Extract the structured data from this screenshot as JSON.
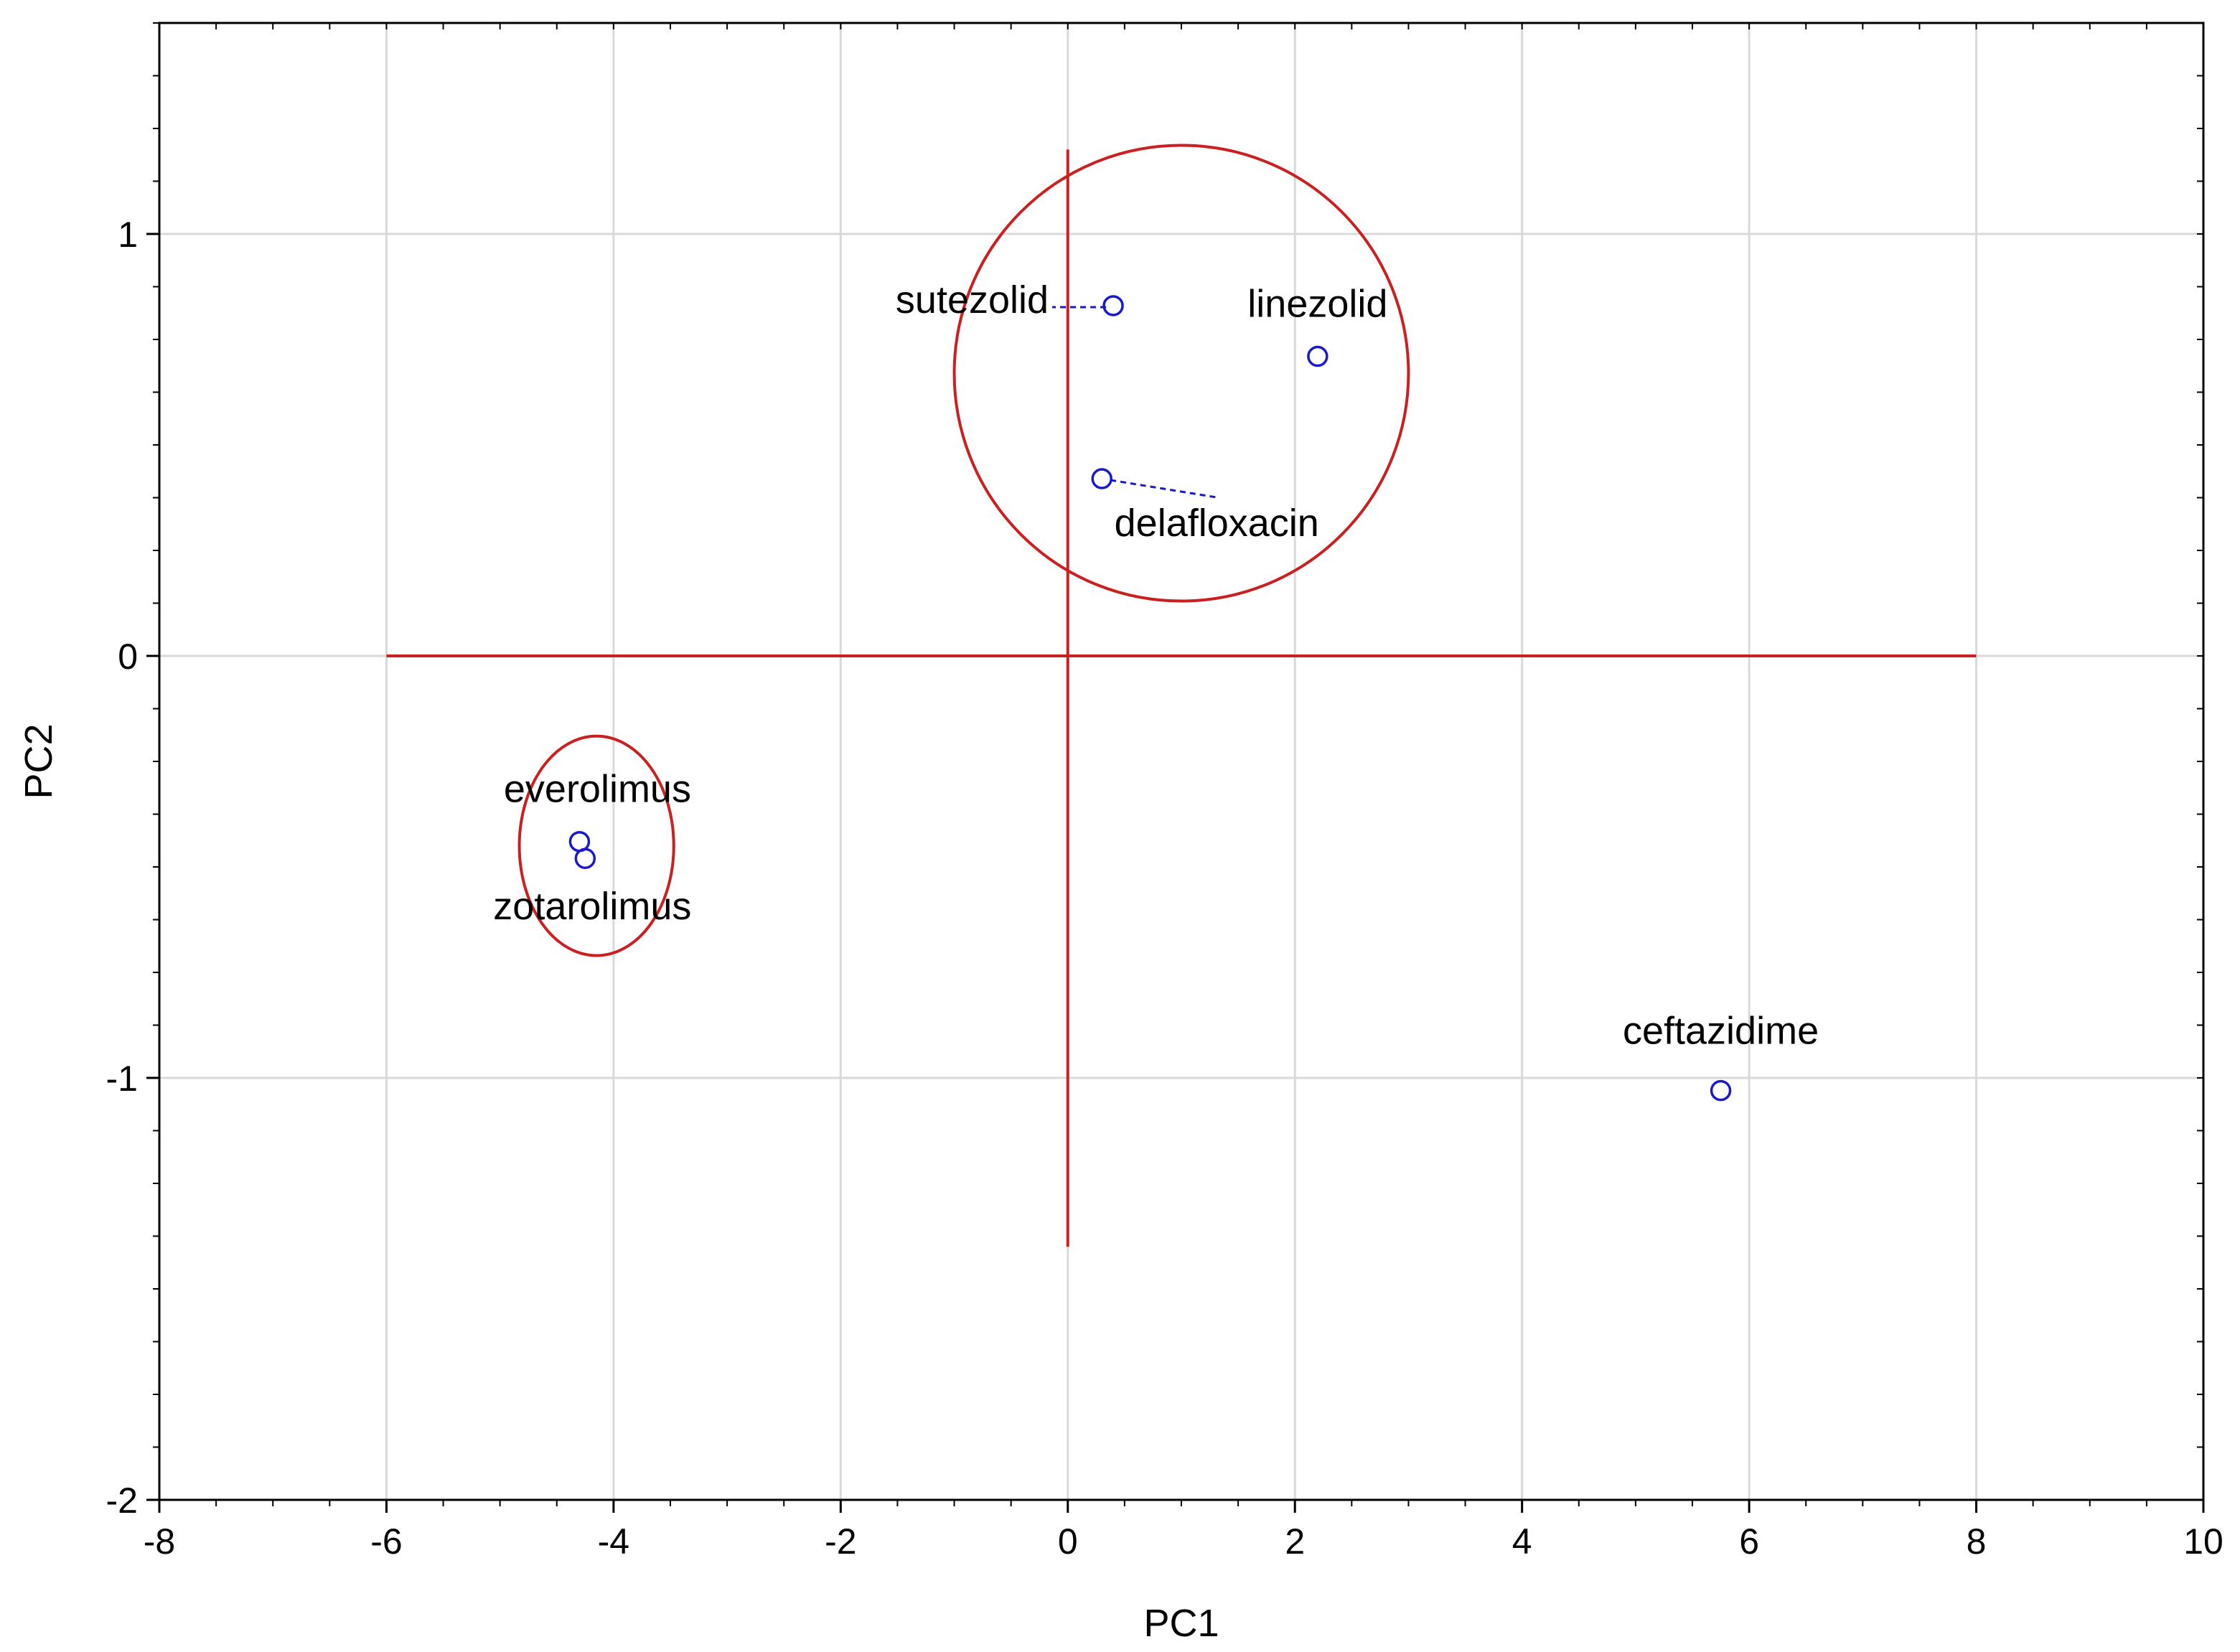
{
  "chart_data": {
    "type": "scatter",
    "title": "",
    "xlabel": "PC1",
    "ylabel": "PC2",
    "xlim": [
      -8,
      10
    ],
    "ylim": [
      -2,
      1.5
    ],
    "xticks": [
      "-8",
      "-6",
      "-4",
      "-2",
      "0",
      "2",
      "4",
      "6",
      "8",
      "10"
    ],
    "yticks": [
      "-2",
      "-1",
      "0",
      "1"
    ],
    "grid": true,
    "points": [
      {
        "label": "sutezolid",
        "x": 0.4,
        "y": 0.83
      },
      {
        "label": "linezolid",
        "x": 2.2,
        "y": 0.71
      },
      {
        "label": "delafloxacin",
        "x": 0.3,
        "y": 0.42
      },
      {
        "label": "everolimus",
        "x": -4.3,
        "y": -0.44
      },
      {
        "label": "zotarolimus",
        "x": -4.25,
        "y": -0.48
      },
      {
        "label": "ceftazidime",
        "x": 5.75,
        "y": -1.03
      }
    ],
    "reference_lines": {
      "horizontal": {
        "y": 0,
        "x_from": -6,
        "x_to": 8
      },
      "vertical": {
        "x": 0,
        "y_from": -1.4,
        "y_to": 1.2
      }
    },
    "clusters": [
      {
        "cx": 1.0,
        "cy": 0.67,
        "rx": 2.0,
        "ry": 0.54
      },
      {
        "cx": -4.15,
        "cy": -0.45,
        "rx": 0.68,
        "ry": 0.26
      }
    ],
    "colors": {
      "points": "#1a1acc",
      "lines": "#cc1f1f",
      "grid": "#d9d9d9",
      "axes": "#000000"
    }
  }
}
